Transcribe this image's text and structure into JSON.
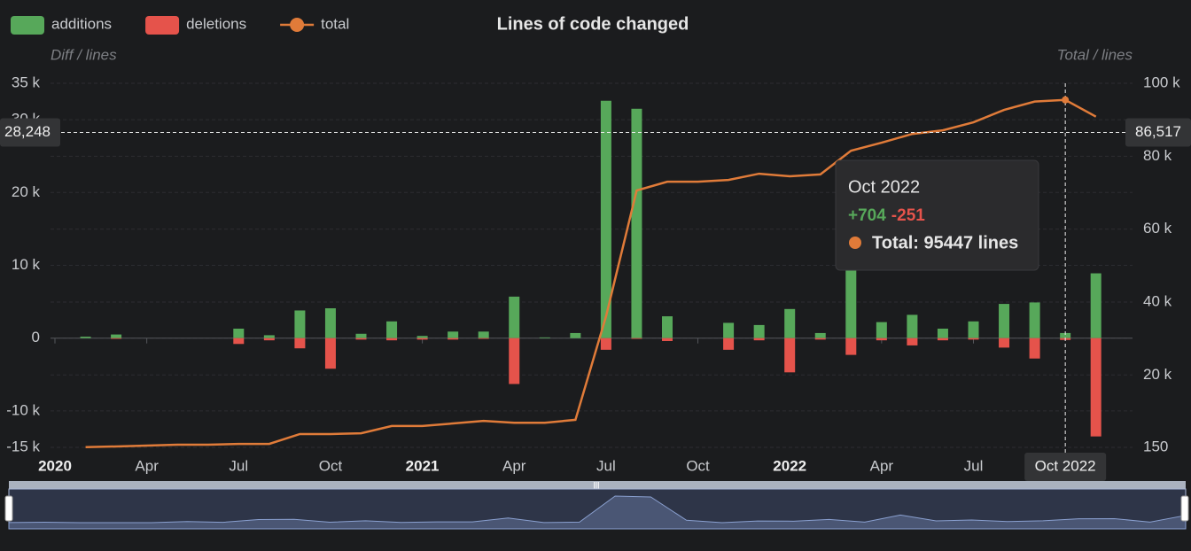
{
  "chart_data": {
    "type": "bar",
    "title": "Lines of code changed",
    "ylabel": "Diff / lines",
    "y2label": "Total / lines",
    "categories": [
      "2020",
      null,
      null,
      "Apr",
      null,
      null,
      "Jul",
      null,
      null,
      "Oct",
      null,
      null,
      "2021",
      null,
      null,
      "Apr",
      null,
      null,
      "Jul",
      null,
      null,
      "Oct",
      null,
      null,
      "2022",
      null,
      null,
      "Apr",
      null,
      null,
      "Jul",
      null,
      null,
      "Oct 2022",
      null
    ],
    "series": [
      {
        "name": "additions",
        "color": "#57a85a",
        "type": "bar",
        "values": [
          null,
          200,
          500,
          0,
          0,
          0,
          1300,
          400,
          3800,
          4100,
          600,
          2300,
          300,
          900,
          900,
          5700,
          100,
          700,
          32600,
          31500,
          3000,
          0,
          2100,
          1800,
          4000,
          700,
          9400,
          2200,
          3200,
          1300,
          2300,
          4700,
          4900,
          704,
          8900
        ]
      },
      {
        "name": "deletions",
        "color": "#e5534b",
        "type": "bar",
        "values": [
          null,
          0,
          -100,
          0,
          0,
          0,
          -800,
          -300,
          -1400,
          -4200,
          -200,
          -300,
          -200,
          -200,
          -100,
          -6300,
          0,
          0,
          -1600,
          -100,
          -400,
          0,
          -1600,
          -300,
          -4700,
          -200,
          -2300,
          -300,
          -1000,
          -300,
          -200,
          -1300,
          -2800,
          -251,
          -13500
        ]
      },
      {
        "name": "total",
        "color": "#e07b39",
        "type": "line",
        "axis": "y2",
        "values": [
          null,
          200,
          400,
          640,
          880,
          880,
          1100,
          1100,
          3800,
          3800,
          4000,
          6000,
          6000,
          6700,
          7400,
          6900,
          6900,
          7700,
          36100,
          70600,
          73000,
          73000,
          73500,
          75200,
          74500,
          75000,
          81500,
          83700,
          86100,
          87100,
          89300,
          92700,
          94990,
          95447,
          90850
        ]
      }
    ],
    "ylim": [
      -15000,
      35000
    ],
    "yticks": [
      {
        "value": 35000,
        "label": "35 k"
      },
      {
        "value": 30000,
        "label": "30 k"
      },
      {
        "value": 20000,
        "label": "20 k"
      },
      {
        "value": 10000,
        "label": "10 k"
      },
      0,
      {
        "value": -10000,
        "label": "-10 k"
      },
      {
        "value": -15000,
        "label": "-15 k"
      }
    ],
    "y2lim": [
      150,
      100000
    ],
    "y2ticks": [
      {
        "value": 100000,
        "label": "100 k"
      },
      {
        "value": 80000,
        "label": "80 k"
      },
      {
        "value": 60000,
        "label": "60 k"
      },
      {
        "value": 40000,
        "label": "40 k"
      },
      {
        "value": 20000,
        "label": "20 k"
      },
      150
    ],
    "grid": true,
    "legend": "top-left",
    "crosshair": {
      "y": {
        "value": 28248,
        "label": "28,248"
      },
      "y2": {
        "value": 86517,
        "label": "86,517"
      }
    },
    "tooltip": {
      "title": "Oct 2022",
      "additions": "+704",
      "deletions": "-251",
      "total": "Total: 95447 lines"
    }
  }
}
